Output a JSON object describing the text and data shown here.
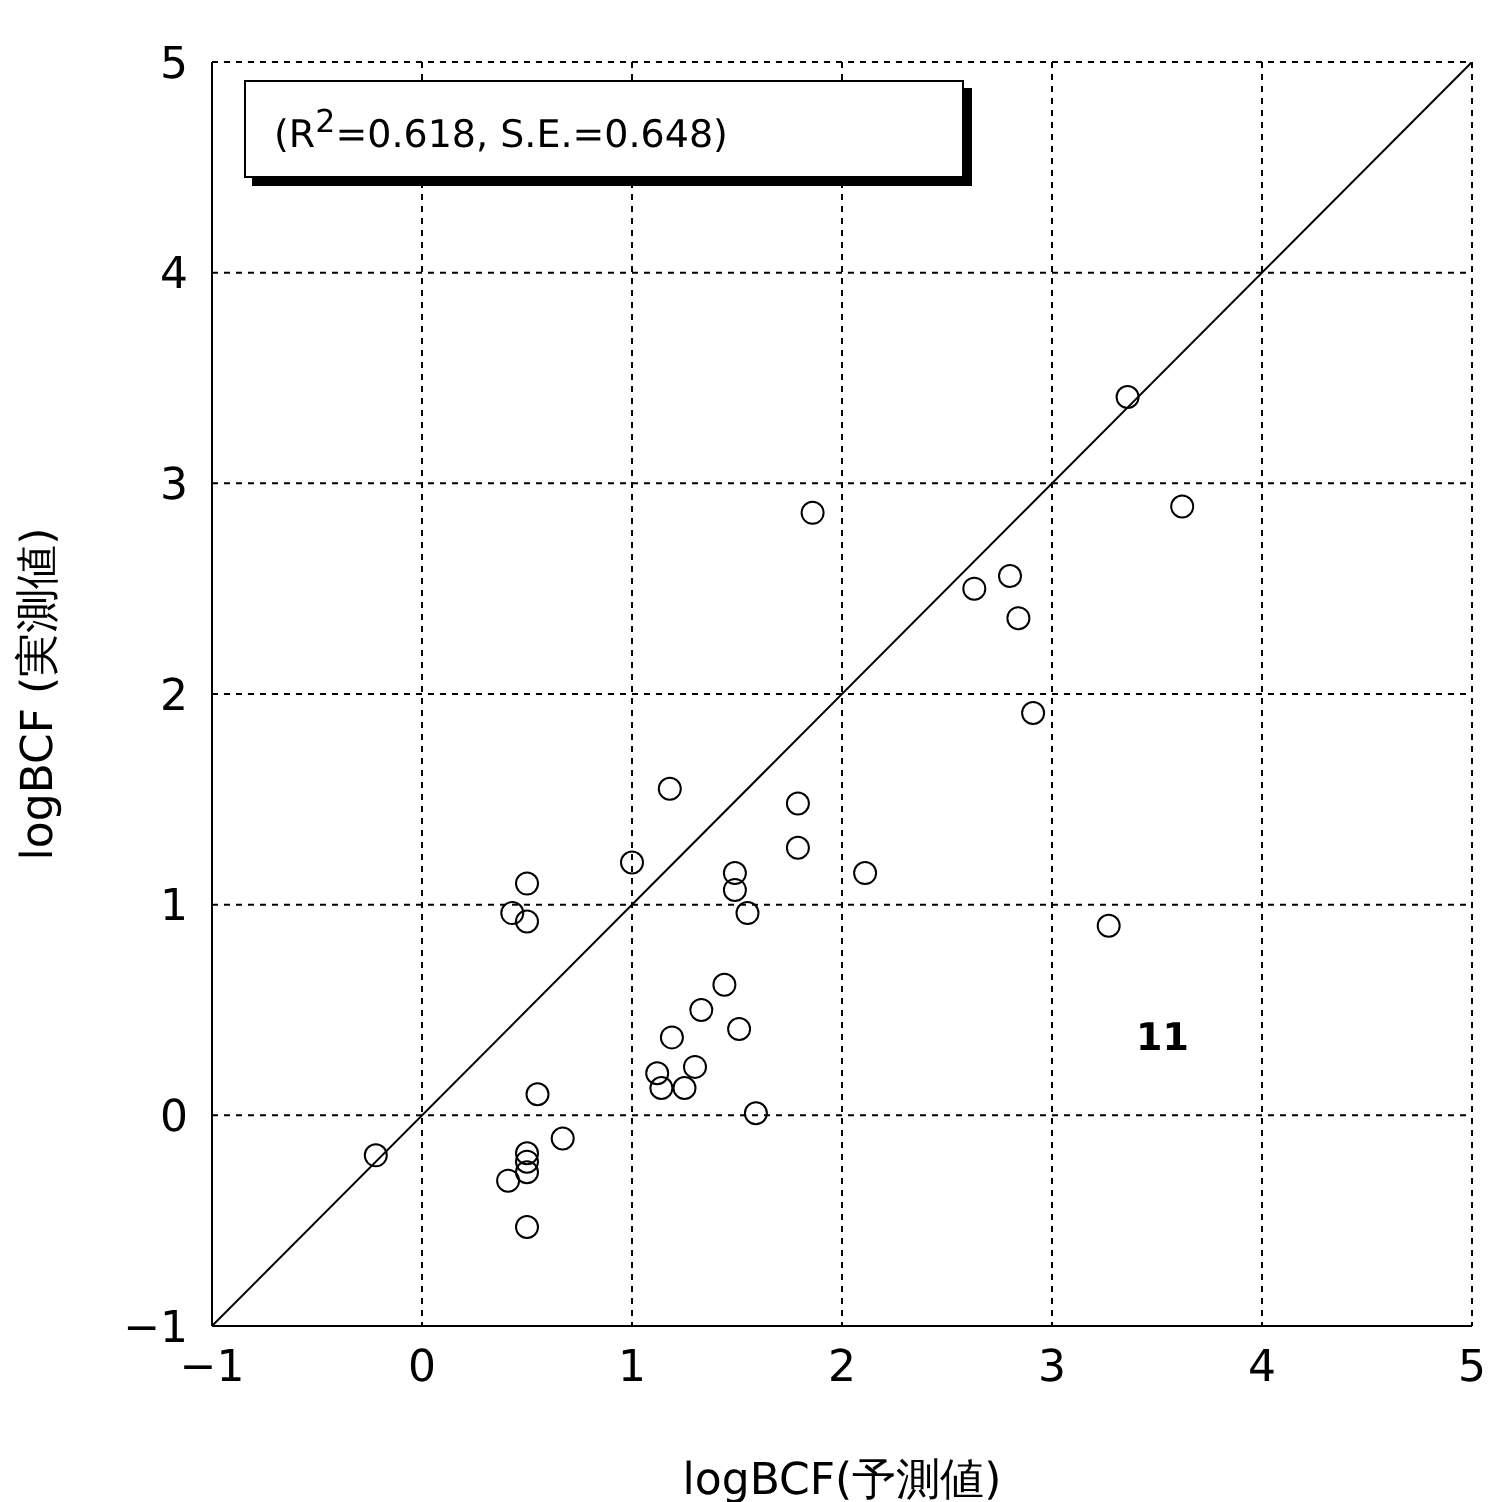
{
  "chart_data": {
    "type": "scatter",
    "xlabel": "logBCF(予測値)",
    "ylabel": "logBCF (実測値)",
    "xlim": [
      -1,
      5
    ],
    "ylim": [
      -1,
      5
    ],
    "xticks": [
      {
        "value": -1,
        "label": "−1"
      },
      0,
      1,
      2,
      3,
      4,
      5
    ],
    "yticks": [
      {
        "value": -1,
        "label": "−1"
      },
      0,
      1,
      2,
      3,
      4,
      5
    ],
    "grid": true,
    "annotations": [
      "(R$^{2}$=0.618, S.E.=0.648)",
      "11"
    ],
    "series": [
      {
        "marker": "circle",
        "color": "#000000",
        "x": [
          -0.22,
          0.41,
          0.5,
          0.5,
          0.5,
          0.5,
          0.55,
          0.67,
          0.5,
          0.43,
          0.5,
          1.0,
          1.18,
          1.49,
          1.49,
          1.55,
          1.79,
          1.79,
          2.11,
          1.44,
          1.33,
          1.51,
          1.19,
          1.3,
          1.12,
          1.14,
          1.25,
          1.59,
          3.36,
          1.86,
          3.62,
          2.63,
          2.8,
          2.84,
          2.91,
          3.27
        ],
        "values": [
          -0.19,
          -0.31,
          -0.27,
          -0.22,
          -0.18,
          -0.53,
          0.1,
          -0.11,
          1.1,
          0.96,
          0.92,
          1.2,
          1.55,
          1.15,
          1.07,
          0.96,
          1.48,
          1.27,
          1.15,
          0.62,
          0.5,
          0.41,
          0.37,
          0.23,
          0.2,
          0.13,
          0.13,
          0.01,
          3.41,
          2.86,
          2.89,
          2.5,
          2.56,
          2.36,
          1.91,
          0.9
        ]
      },
      {
        "type": "line",
        "marker": "none",
        "color": "#000000",
        "x": [
          -1,
          5
        ],
        "values": [
          -1,
          5
        ]
      }
    ]
  }
}
